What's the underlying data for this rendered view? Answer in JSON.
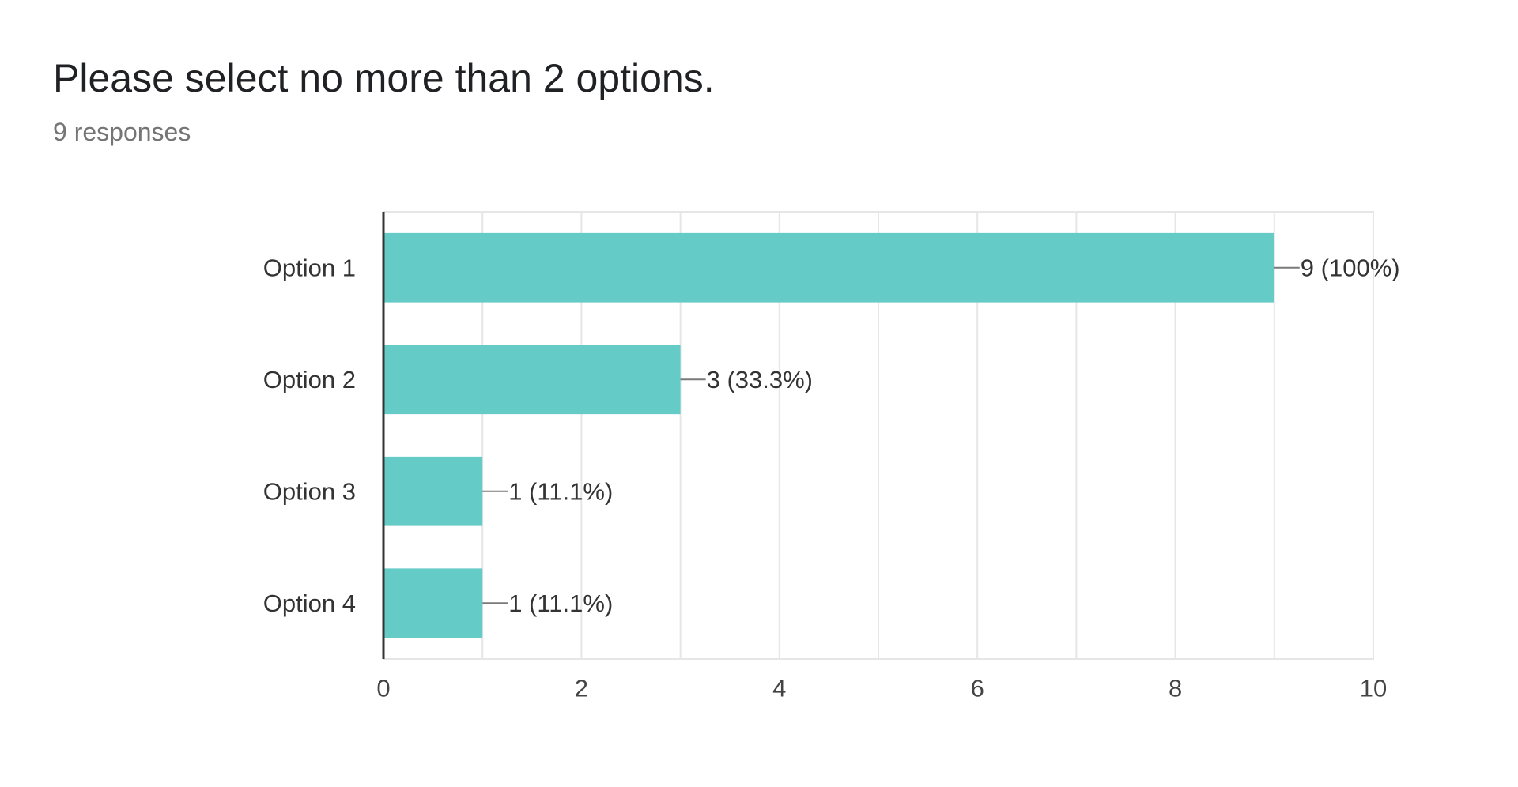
{
  "header": {
    "title": "Please select no more than 2 options.",
    "subtitle": "9 responses"
  },
  "colors": {
    "bar": "#64CBC7",
    "axis": "#333333",
    "grid": "#E6E6E6",
    "label": "#333333",
    "tick": "#444444",
    "leader": "#7a7a7a"
  },
  "chart_data": {
    "type": "bar",
    "orientation": "horizontal",
    "categories": [
      "Option 1",
      "Option 2",
      "Option 3",
      "Option 4"
    ],
    "values": [
      9,
      3,
      1,
      1
    ],
    "data_labels": [
      "9 (100%)",
      "3 (33.3%)",
      "1 (11.1%)",
      "1 (11.1%)"
    ],
    "xlim": [
      0,
      10
    ],
    "x_ticks": [
      "0",
      "2",
      "4",
      "6",
      "8",
      "10"
    ],
    "grid": true
  }
}
